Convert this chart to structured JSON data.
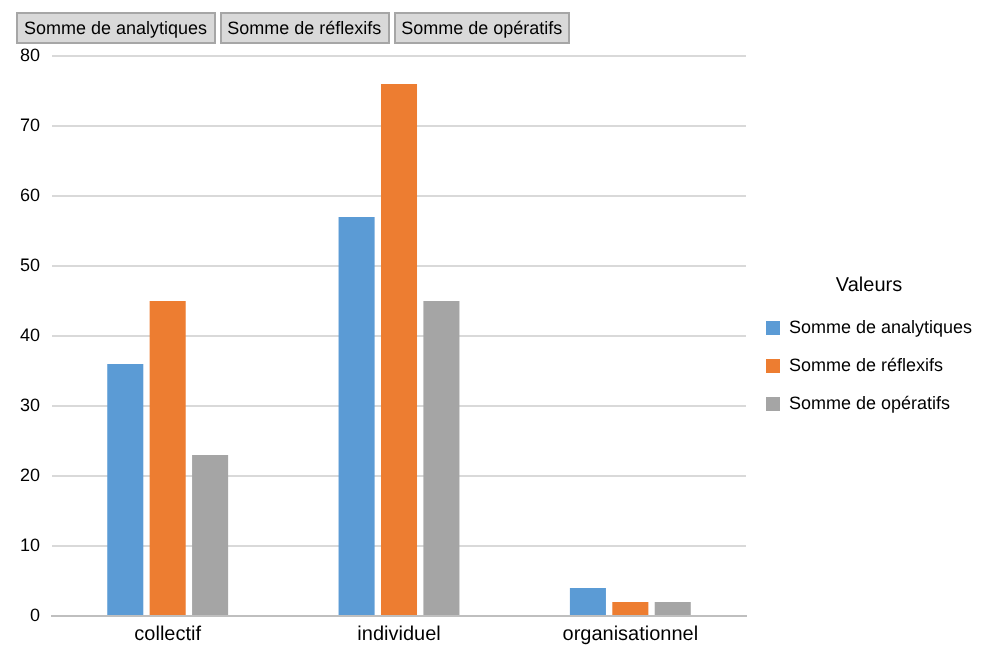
{
  "chart_data": {
    "type": "bar",
    "categories": [
      "collectif",
      "individuel",
      "organisationnel"
    ],
    "series": [
      {
        "name": "Somme de analytiques",
        "color": "#5b9bd5",
        "values": [
          36,
          57,
          4
        ]
      },
      {
        "name": "Somme de réflexifs",
        "color": "#ed7d31",
        "values": [
          45,
          76,
          2
        ]
      },
      {
        "name": "Somme de opératifs",
        "color": "#a5a5a5",
        "values": [
          23,
          45,
          2
        ]
      }
    ],
    "ylim": [
      0,
      80
    ],
    "yticks": [
      0,
      10,
      20,
      30,
      40,
      50,
      60,
      70,
      80
    ],
    "grid": "y",
    "legend": "right",
    "legend_title": "Valeurs",
    "annotations": [
      "Somme de analytiques",
      "Somme de réflexifs",
      "Somme de opératifs"
    ]
  }
}
